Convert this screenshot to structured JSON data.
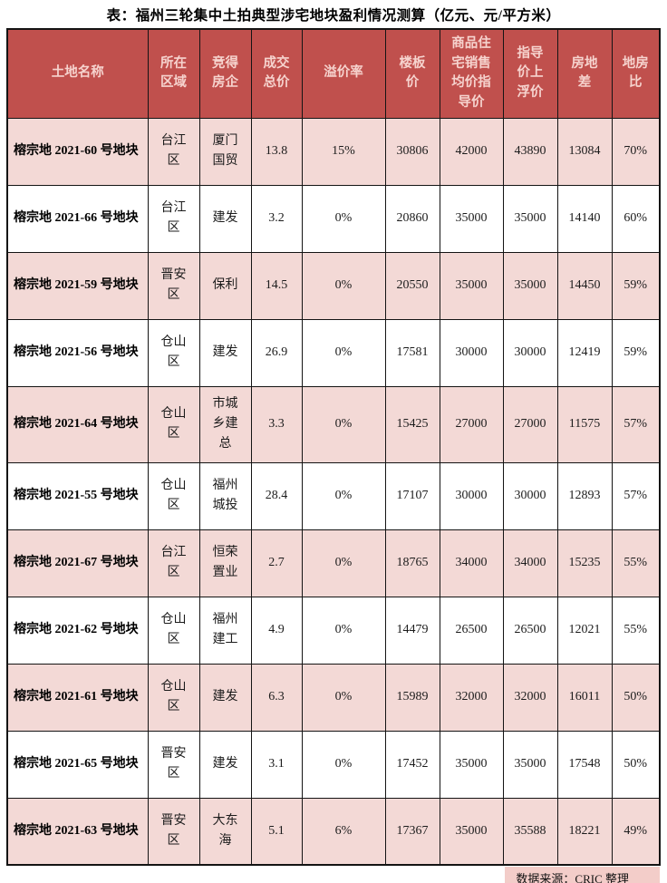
{
  "title": "表：福州三轮集中土拍典型涉宅地块盈利情况测算（亿元、元/平方米）",
  "table": {
    "columns": [
      {
        "key": "name",
        "label": "土地名称"
      },
      {
        "key": "region",
        "label": "所在区域"
      },
      {
        "key": "developer",
        "label": "竞得房企"
      },
      {
        "key": "total_price",
        "label": "成交总价"
      },
      {
        "key": "premium_rate",
        "label": "溢价率"
      },
      {
        "key": "floor_price",
        "label": "楼板价"
      },
      {
        "key": "guide_price",
        "label": "商品住宅销售均价指导价"
      },
      {
        "key": "guide_price_up",
        "label": "指导价上浮价"
      },
      {
        "key": "land_house_diff",
        "label": "房地差"
      },
      {
        "key": "land_house_ratio",
        "label": "地房比"
      }
    ],
    "rows": [
      {
        "name": "榕宗地 2021-60 号地块",
        "region": "台江区",
        "developer": "厦门国贸",
        "total_price": "13.8",
        "premium_rate": "15%",
        "floor_price": "30806",
        "guide_price": "42000",
        "guide_price_up": "43890",
        "land_house_diff": "13084",
        "land_house_ratio": "70%"
      },
      {
        "name": "榕宗地 2021-66 号地块",
        "region": "台江区",
        "developer": "建发",
        "total_price": "3.2",
        "premium_rate": "0%",
        "floor_price": "20860",
        "guide_price": "35000",
        "guide_price_up": "35000",
        "land_house_diff": "14140",
        "land_house_ratio": "60%"
      },
      {
        "name": "榕宗地 2021-59 号地块",
        "region": "晋安区",
        "developer": "保利",
        "total_price": "14.5",
        "premium_rate": "0%",
        "floor_price": "20550",
        "guide_price": "35000",
        "guide_price_up": "35000",
        "land_house_diff": "14450",
        "land_house_ratio": "59%"
      },
      {
        "name": "榕宗地 2021-56 号地块",
        "region": "仓山区",
        "developer": "建发",
        "total_price": "26.9",
        "premium_rate": "0%",
        "floor_price": "17581",
        "guide_price": "30000",
        "guide_price_up": "30000",
        "land_house_diff": "12419",
        "land_house_ratio": "59%"
      },
      {
        "name": "榕宗地 2021-64 号地块",
        "region": "仓山区",
        "developer": "市城乡建总",
        "total_price": "3.3",
        "premium_rate": "0%",
        "floor_price": "15425",
        "guide_price": "27000",
        "guide_price_up": "27000",
        "land_house_diff": "11575",
        "land_house_ratio": "57%"
      },
      {
        "name": "榕宗地 2021-55 号地块",
        "region": "仓山区",
        "developer": "福州城投",
        "total_price": "28.4",
        "premium_rate": "0%",
        "floor_price": "17107",
        "guide_price": "30000",
        "guide_price_up": "30000",
        "land_house_diff": "12893",
        "land_house_ratio": "57%"
      },
      {
        "name": "榕宗地 2021-67 号地块",
        "region": "台江区",
        "developer": "恒荣置业",
        "total_price": "2.7",
        "premium_rate": "0%",
        "floor_price": "18765",
        "guide_price": "34000",
        "guide_price_up": "34000",
        "land_house_diff": "15235",
        "land_house_ratio": "55%"
      },
      {
        "name": "榕宗地 2021-62 号地块",
        "region": "仓山区",
        "developer": "福州建工",
        "total_price": "4.9",
        "premium_rate": "0%",
        "floor_price": "14479",
        "guide_price": "26500",
        "guide_price_up": "26500",
        "land_house_diff": "12021",
        "land_house_ratio": "55%"
      },
      {
        "name": "榕宗地 2021-61 号地块",
        "region": "仓山区",
        "developer": "建发",
        "total_price": "6.3",
        "premium_rate": "0%",
        "floor_price": "15989",
        "guide_price": "32000",
        "guide_price_up": "32000",
        "land_house_diff": "16011",
        "land_house_ratio": "50%"
      },
      {
        "name": "榕宗地 2021-65 号地块",
        "region": "晋安区",
        "developer": "建发",
        "total_price": "3.1",
        "premium_rate": "0%",
        "floor_price": "17452",
        "guide_price": "35000",
        "guide_price_up": "35000",
        "land_house_diff": "17548",
        "land_house_ratio": "50%"
      },
      {
        "name": "榕宗地 2021-63 号地块",
        "region": "晋安区",
        "developer": "大东海",
        "total_price": "5.1",
        "premium_rate": "6%",
        "floor_price": "17367",
        "guide_price": "35000",
        "guide_price_up": "35588",
        "land_house_diff": "18221",
        "land_house_ratio": "49%"
      }
    ]
  },
  "footer": {
    "source": "数据来源：CRIC 整理"
  },
  "colors": {
    "header_bg": "#c0504d",
    "header_text": "#f6d3ce",
    "row_pink": "#f3d9d6",
    "footer_bg": "#f3cdc9",
    "border": "#141414"
  }
}
